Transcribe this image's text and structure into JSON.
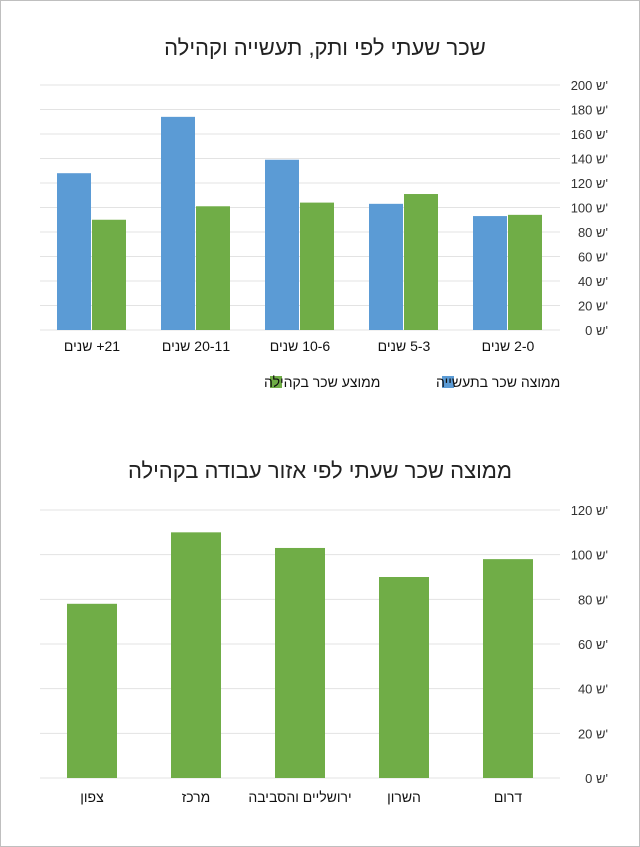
{
  "chart_data": [
    {
      "type": "bar",
      "title": "שכר שעתי לפי ותק, תעשייה וקהילה",
      "categories": [
        "2-0 שנים",
        "5-3 שנים",
        "10-6 שנים",
        "20-11 שנים",
        "21+ שנים"
      ],
      "series": [
        {
          "name": "ממוצה שכר בתעשייה",
          "color": "#5b9bd5",
          "values": [
            93,
            103,
            139,
            174,
            128
          ]
        },
        {
          "name": "ממוצע שכר בקהילה",
          "color": "#70ad47",
          "values": [
            94,
            111,
            104,
            101,
            90
          ]
        }
      ],
      "y_ticks": [
        "0 ש'",
        "20 ש'",
        "40 ש'",
        "60 ש'",
        "80 ש'",
        "100 ש'",
        "120 ש'",
        "140 ש'",
        "160 ש'",
        "180 ש'",
        "200 ש'"
      ],
      "ylim": [
        0,
        200
      ],
      "category_order": "right-to-left",
      "y_axis_side": "right",
      "legend_position": "bottom",
      "grid": true
    },
    {
      "type": "bar",
      "title": "ממוצה שכר שעתי לפי אזור עבודה בקהילה",
      "categories": [
        "דרום",
        "השרון",
        "ירושליים והסביבה",
        "מרכז",
        "צפון"
      ],
      "series": [
        {
          "color": "#70ad47",
          "values": [
            98,
            90,
            103,
            110,
            78
          ]
        }
      ],
      "y_ticks": [
        "0 ש'",
        "20 ש'",
        "40 ש'",
        "60 ש'",
        "80 ש'",
        "100 ש'",
        "120 ש'"
      ],
      "ylim": [
        0,
        120
      ],
      "category_order": "right-to-left",
      "y_axis_side": "right",
      "grid": true
    }
  ]
}
